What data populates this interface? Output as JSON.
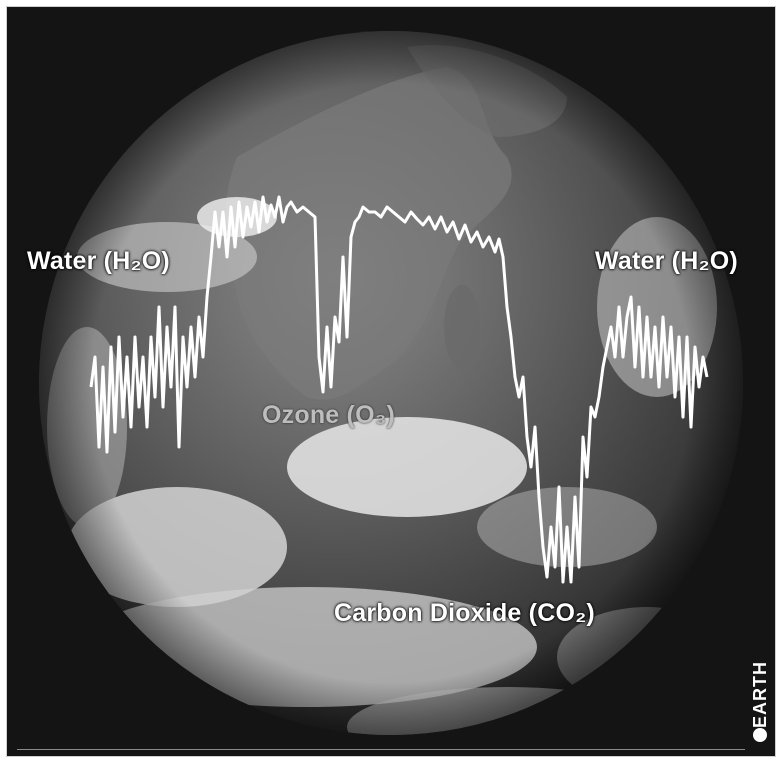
{
  "labels": {
    "water_left": "Water (H₂O)",
    "water_right": "Water (H₂O)",
    "ozone": "Ozone (O₃)",
    "carbon_dioxide": "Carbon Dioxide (CO₂)"
  },
  "planet_tag": "EARTH",
  "colors": {
    "background": "#141414",
    "curve": "#ffffff",
    "ozone_label": "#bdbdbd"
  },
  "icons": {
    "planet_marker": "filled-circle-icon"
  }
}
